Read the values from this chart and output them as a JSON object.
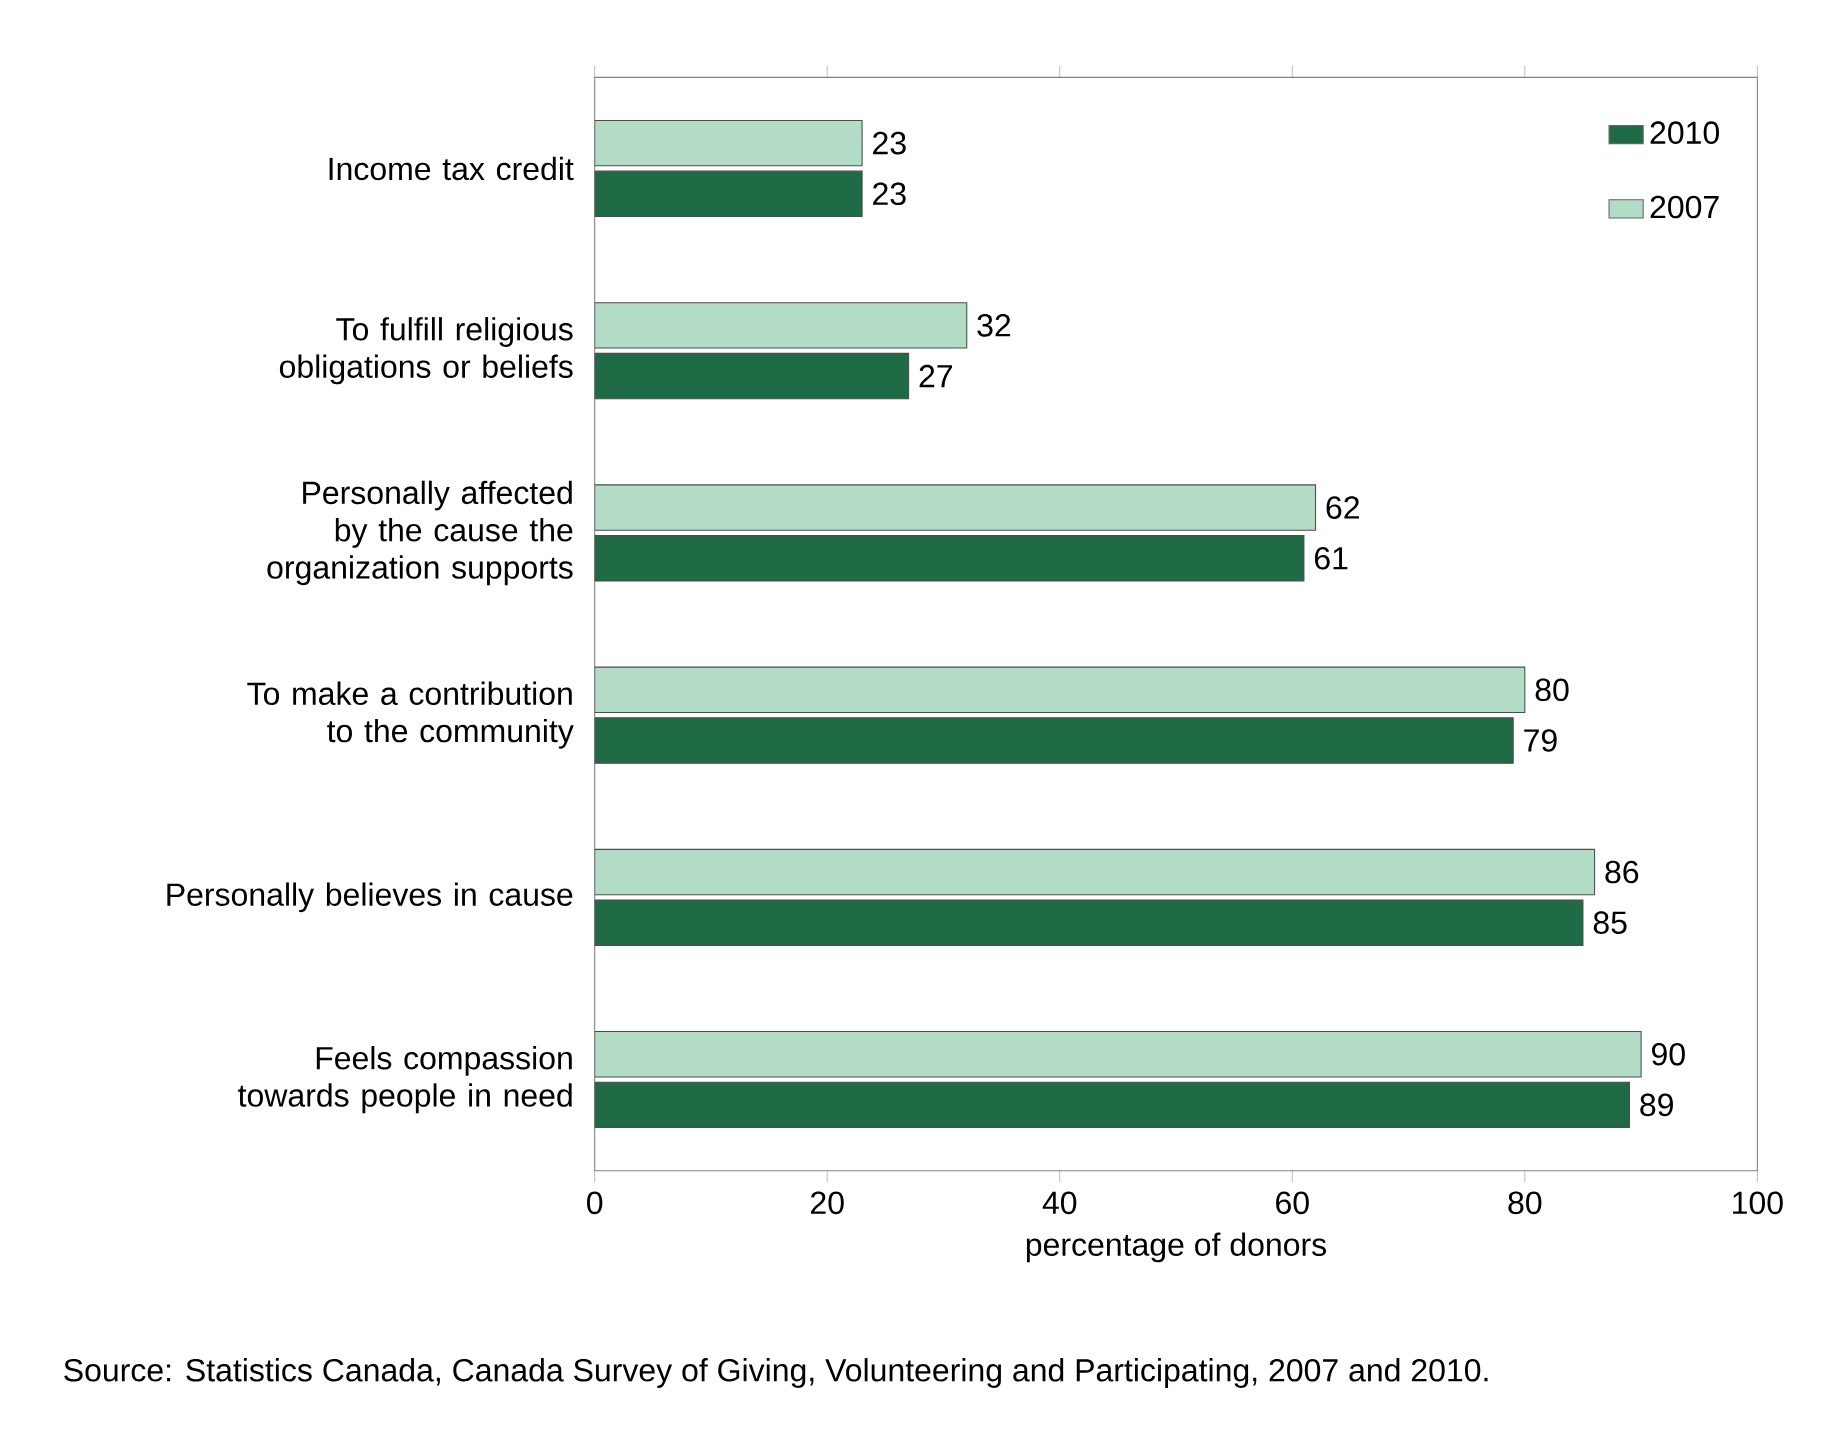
{
  "chart_data": {
    "type": "bar",
    "orientation": "horizontal",
    "categories": [
      "Income tax credit",
      "To fulfill religious obligations or beliefs",
      "Personally affected by the cause the organization supports",
      "To make a contribution to the community",
      "Personally believes in cause",
      "Feels compassion towards people in need"
    ],
    "series": [
      {
        "name": "2010",
        "color": "#1f6b45",
        "values": [
          23,
          27,
          61,
          79,
          85,
          89
        ]
      },
      {
        "name": "2007",
        "color": "#b3dcc6",
        "values": [
          23,
          32,
          62,
          80,
          86,
          90
        ]
      }
    ],
    "xlim": [
      0,
      100
    ],
    "xticks": [
      0,
      20,
      40,
      60,
      80,
      100
    ],
    "xlabel": "percentage of donors",
    "data_labels": true,
    "legend": "top right",
    "grid": false,
    "annotations": [
      "Source: Statistics Canada, Canada Survey of Giving, Volunteering and Participating, 2007 and 2010."
    ]
  }
}
